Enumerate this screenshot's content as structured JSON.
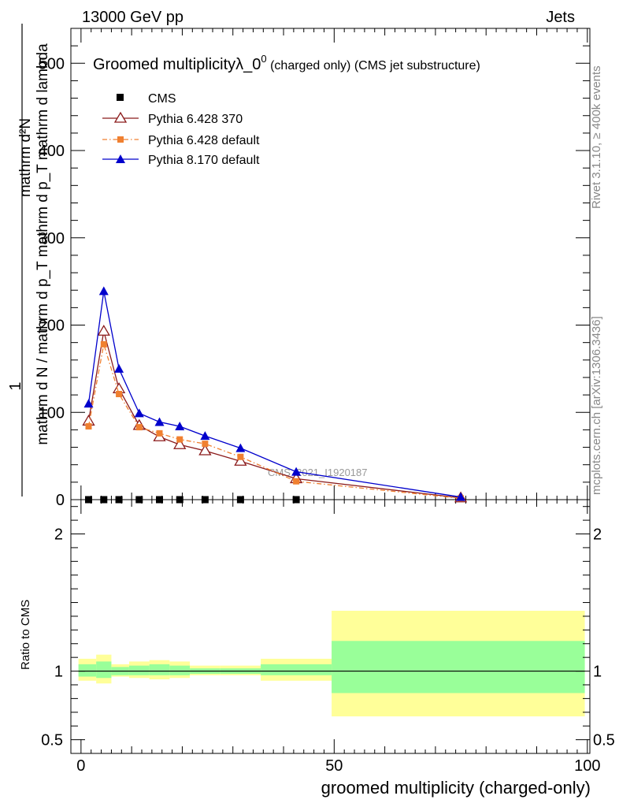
{
  "header": {
    "energy_label": "13000 GeV pp",
    "process_label": "Jets"
  },
  "side_labels": {
    "rivet": "Rivet 3.1.10, ≥ 400k events",
    "mcplots": "mcplots.cern.ch [arXiv:1306.3436]"
  },
  "chart_data": [
    {
      "type": "line",
      "title_main": "Groomed multiplicityλ_0",
      "title_sup": "0",
      "title_rest": " (charged only) (CMS jet substructure)",
      "ylabel_numerator": "1",
      "ylabel_denominator": "mathrm d N / mathrm d p_T mathrm d p_T mathrm d lambda",
      "ylabel_top": "mathrm d²N",
      "xlabel": "groomed multiplicity (charged-only)",
      "xlim": [
        -2,
        100.5
      ],
      "ylim": [
        0,
        540
      ],
      "y_ticks": [
        0,
        100,
        200,
        300,
        400,
        500
      ],
      "x_ticks": [
        0,
        50,
        100
      ],
      "analysis_label": "CMS_2021_I1920187",
      "series": [
        {
          "name": "CMS",
          "color": "#000000",
          "marker": "square",
          "x": [
            1.5,
            4.5,
            7.5,
            11.5,
            15.5,
            19.5,
            24.5,
            31.5,
            42.5
          ],
          "y": [
            0,
            0,
            0,
            0,
            0,
            0,
            0,
            0,
            0
          ]
        },
        {
          "name": "Pythia 6.428 370",
          "color": "#8b1a1a",
          "marker": "open-triangle",
          "x": [
            1.5,
            4.5,
            7.5,
            11.5,
            15.5,
            19.5,
            24.5,
            31.5,
            42.5,
            75
          ],
          "y": [
            90,
            193,
            127,
            85,
            72,
            63,
            56,
            44,
            24,
            2
          ]
        },
        {
          "name": "Pythia 6.428 default",
          "color": "#f08030",
          "marker": "square",
          "x": [
            1.5,
            4.5,
            7.5,
            11.5,
            15.5,
            19.5,
            24.5,
            31.5,
            42.5,
            75
          ],
          "y": [
            84,
            178,
            121,
            83,
            76,
            69,
            64,
            49,
            21,
            1.5
          ]
        },
        {
          "name": "Pythia 8.170 default",
          "color": "#0000cc",
          "marker": "triangle",
          "x": [
            1.5,
            4.5,
            7.5,
            11.5,
            15.5,
            19.5,
            24.5,
            31.5,
            42.5,
            75
          ],
          "y": [
            110,
            239,
            150,
            99,
            89,
            84,
            73,
            59,
            32,
            3
          ]
        }
      ]
    },
    {
      "type": "area",
      "ylabel": "Ratio to CMS",
      "xlim": [
        -2,
        100.5
      ],
      "ylim": [
        0.4,
        2.25
      ],
      "y_ticks": [
        0.5,
        1,
        2
      ],
      "x_ticks": [
        0,
        50,
        100
      ],
      "bands": [
        {
          "x0": -0.5,
          "x1": 3,
          "inner": [
            0.96,
            1.05
          ],
          "outer": [
            0.93,
            1.09
          ]
        },
        {
          "x0": 3,
          "x1": 6,
          "inner": [
            0.95,
            1.07
          ],
          "outer": [
            0.91,
            1.12
          ]
        },
        {
          "x0": 6,
          "x1": 9.5,
          "inner": [
            0.97,
            1.03
          ],
          "outer": [
            0.96,
            1.05
          ]
        },
        {
          "x0": 9.5,
          "x1": 13.5,
          "inner": [
            0.97,
            1.04
          ],
          "outer": [
            0.95,
            1.07
          ]
        },
        {
          "x0": 13.5,
          "x1": 17.5,
          "inner": [
            0.97,
            1.05
          ],
          "outer": [
            0.94,
            1.08
          ]
        },
        {
          "x0": 17.5,
          "x1": 21.5,
          "inner": [
            0.97,
            1.04
          ],
          "outer": [
            0.95,
            1.07
          ]
        },
        {
          "x0": 21.5,
          "x1": 27.5,
          "inner": [
            0.98,
            1.02
          ],
          "outer": [
            0.97,
            1.04
          ]
        },
        {
          "x0": 27.5,
          "x1": 35.5,
          "inner": [
            0.98,
            1.02
          ],
          "outer": [
            0.97,
            1.04
          ]
        },
        {
          "x0": 35.5,
          "x1": 49.5,
          "inner": [
            0.97,
            1.05
          ],
          "outer": [
            0.93,
            1.09
          ]
        },
        {
          "x0": 49.5,
          "x1": 99.5,
          "inner": [
            0.84,
            1.22
          ],
          "outer": [
            0.67,
            1.44
          ]
        }
      ],
      "reference_line": 1
    }
  ]
}
